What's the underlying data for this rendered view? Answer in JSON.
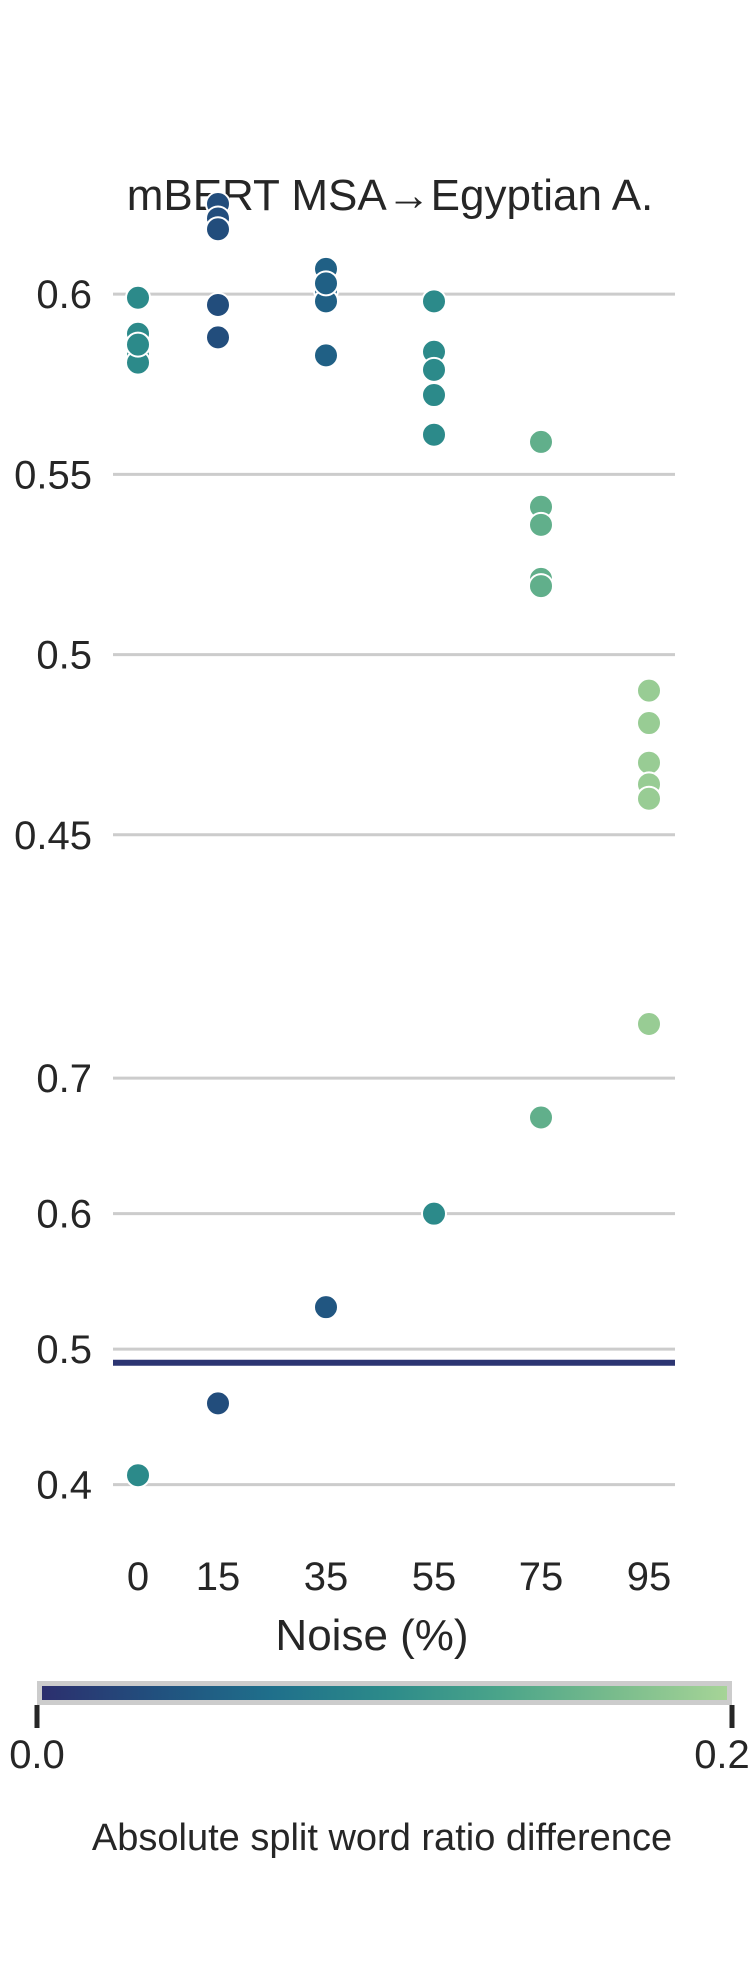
{
  "chart_data": {
    "type": "scatter",
    "title": "mBERT MSA→Egyptian A.",
    "xlabel": "Noise (%)",
    "x_categories": [
      "0",
      "15",
      "35",
      "55",
      "75",
      "95"
    ],
    "grid": "horizontal",
    "top_panel": {
      "yticks": [
        "0.6",
        "0.55",
        "0.5",
        "0.45"
      ],
      "ytick_values": [
        0.6,
        0.55,
        0.5,
        0.45
      ],
      "ylim": [
        0.448,
        0.63
      ],
      "points": [
        {
          "x": "0",
          "y": 0.599,
          "c": 0.1
        },
        {
          "x": "0",
          "y": 0.589,
          "c": 0.1
        },
        {
          "x": "0",
          "y": 0.583,
          "c": 0.1
        },
        {
          "x": "0",
          "y": 0.581,
          "c": 0.1
        },
        {
          "x": "0",
          "y": 0.586,
          "c": 0.1
        },
        {
          "x": "15",
          "y": 0.625,
          "c": 0.03
        },
        {
          "x": "15",
          "y": 0.621,
          "c": 0.03
        },
        {
          "x": "15",
          "y": 0.618,
          "c": 0.03
        },
        {
          "x": "15",
          "y": 0.597,
          "c": 0.03
        },
        {
          "x": "15",
          "y": 0.588,
          "c": 0.03
        },
        {
          "x": "35",
          "y": 0.607,
          "c": 0.05
        },
        {
          "x": "35",
          "y": 0.601,
          "c": 0.05
        },
        {
          "x": "35",
          "y": 0.598,
          "c": 0.05
        },
        {
          "x": "35",
          "y": 0.603,
          "c": 0.05
        },
        {
          "x": "35",
          "y": 0.583,
          "c": 0.05
        },
        {
          "x": "55",
          "y": 0.598,
          "c": 0.1
        },
        {
          "x": "55",
          "y": 0.584,
          "c": 0.1
        },
        {
          "x": "55",
          "y": 0.579,
          "c": 0.1
        },
        {
          "x": "55",
          "y": 0.572,
          "c": 0.1
        },
        {
          "x": "55",
          "y": 0.561,
          "c": 0.1
        },
        {
          "x": "75",
          "y": 0.559,
          "c": 0.15
        },
        {
          "x": "75",
          "y": 0.541,
          "c": 0.15
        },
        {
          "x": "75",
          "y": 0.536,
          "c": 0.15
        },
        {
          "x": "75",
          "y": 0.521,
          "c": 0.15
        },
        {
          "x": "75",
          "y": 0.519,
          "c": 0.15
        },
        {
          "x": "95",
          "y": 0.49,
          "c": 0.19
        },
        {
          "x": "95",
          "y": 0.481,
          "c": 0.19
        },
        {
          "x": "95",
          "y": 0.47,
          "c": 0.19
        },
        {
          "x": "95",
          "y": 0.464,
          "c": 0.19
        },
        {
          "x": "95",
          "y": 0.46,
          "c": 0.19
        }
      ]
    },
    "bottom_panel": {
      "yticks": [
        "0.7",
        "0.6",
        "0.5",
        "0.4"
      ],
      "ytick_values": [
        0.7,
        0.6,
        0.5,
        0.4
      ],
      "ylim": [
        0.385,
        0.785
      ],
      "reference_line": {
        "y": 0.49,
        "color": "#2c3572"
      },
      "points": [
        {
          "x": "0",
          "y": 0.407,
          "c": 0.1
        },
        {
          "x": "15",
          "y": 0.46,
          "c": 0.03
        },
        {
          "x": "35",
          "y": 0.531,
          "c": 0.04
        },
        {
          "x": "55",
          "y": 0.6,
          "c": 0.1
        },
        {
          "x": "75",
          "y": 0.671,
          "c": 0.15
        },
        {
          "x": "95",
          "y": 0.74,
          "c": 0.19
        }
      ]
    },
    "colorbar": {
      "label": "Absolute split word ratio difference",
      "min_label": "0.0",
      "max_label": "0.2",
      "range": [
        0,
        0.2
      ],
      "colors": [
        "#2c2f6e",
        "#21507e",
        "#1f6f8b",
        "#2c8a8a",
        "#4aa48a",
        "#78bb8c",
        "#a6d497"
      ]
    }
  }
}
